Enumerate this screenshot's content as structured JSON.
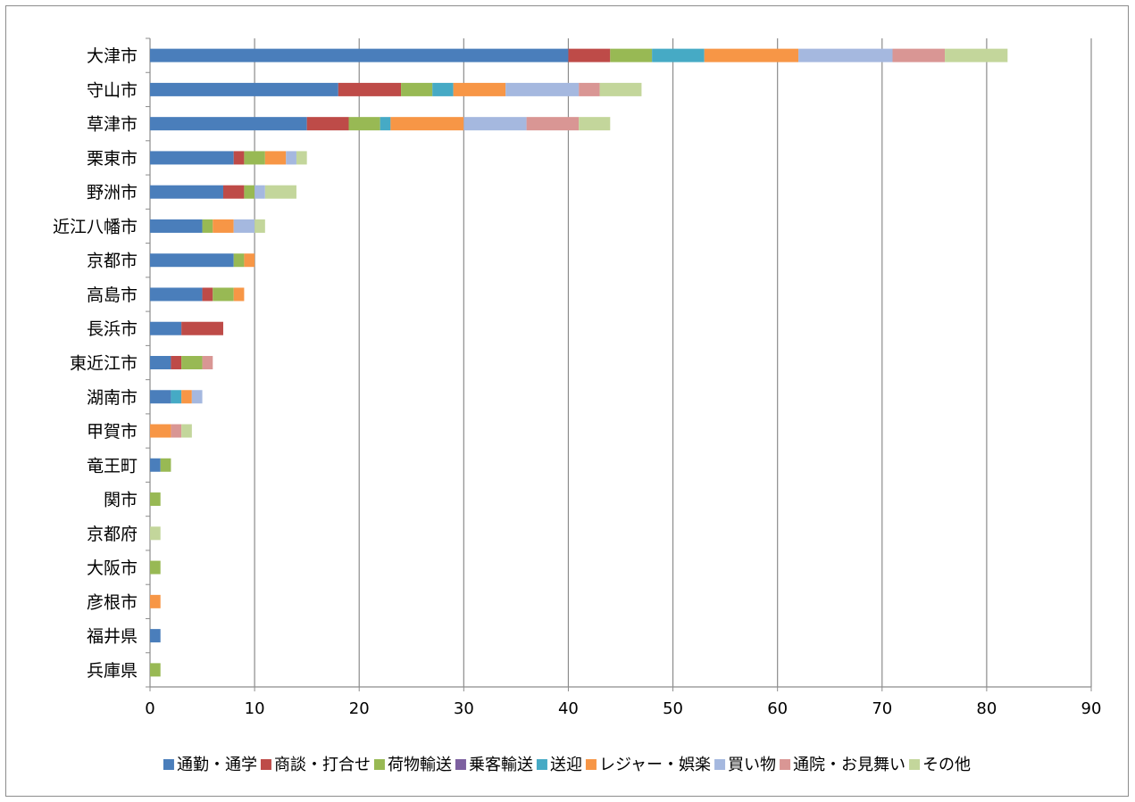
{
  "chart_data": {
    "type": "bar",
    "orientation": "horizontal",
    "stacked": true,
    "categories": [
      "大津市",
      "守山市",
      "草津市",
      "栗東市",
      "野洲市",
      "近江八幡市",
      "京都市",
      "高島市",
      "長浜市",
      "東近江市",
      "湖南市",
      "甲賀市",
      "竜王町",
      "関市",
      "京都府",
      "大阪市",
      "彦根市",
      "福井県",
      "兵庫県"
    ],
    "series": [
      {
        "name": "通勤・通学",
        "color": "#4a7ebb",
        "values": [
          40,
          18,
          15,
          8,
          7,
          5,
          8,
          5,
          3,
          2,
          2,
          0,
          1,
          0,
          0,
          0,
          0,
          1,
          0
        ]
      },
      {
        "name": "商談・打合せ",
        "color": "#be4b48",
        "values": [
          4,
          6,
          4,
          1,
          2,
          0,
          0,
          1,
          4,
          1,
          0,
          0,
          0,
          0,
          0,
          0,
          0,
          0,
          0
        ]
      },
      {
        "name": "荷物輸送",
        "color": "#98b954",
        "values": [
          4,
          3,
          3,
          2,
          1,
          1,
          1,
          2,
          0,
          2,
          0,
          0,
          1,
          1,
          0,
          1,
          0,
          0,
          1
        ]
      },
      {
        "name": "乗客輸送",
        "color": "#7d60a0",
        "values": [
          0,
          0,
          0,
          0,
          0,
          0,
          0,
          0,
          0,
          0,
          0,
          0,
          0,
          0,
          0,
          0,
          0,
          0,
          0
        ]
      },
      {
        "name": "送迎",
        "color": "#46aac5",
        "values": [
          5,
          2,
          1,
          0,
          0,
          0,
          0,
          0,
          0,
          0,
          1,
          0,
          0,
          0,
          0,
          0,
          0,
          0,
          0
        ]
      },
      {
        "name": "レジャー・娯楽",
        "color": "#f79646",
        "values": [
          9,
          5,
          7,
          2,
          0,
          2,
          1,
          1,
          0,
          0,
          1,
          2,
          0,
          0,
          0,
          0,
          1,
          0,
          0
        ]
      },
      {
        "name": "買い物",
        "color": "#a5b8df",
        "values": [
          9,
          7,
          6,
          1,
          1,
          2,
          0,
          0,
          0,
          0,
          1,
          0,
          0,
          0,
          0,
          0,
          0,
          0,
          0
        ]
      },
      {
        "name": "通院・お見舞い",
        "color": "#d99694",
        "values": [
          5,
          2,
          5,
          0,
          0,
          0,
          0,
          0,
          0,
          1,
          0,
          1,
          0,
          0,
          0,
          0,
          0,
          0,
          0
        ]
      },
      {
        "name": "その他",
        "color": "#c3d69b",
        "values": [
          6,
          4,
          3,
          1,
          3,
          1,
          0,
          0,
          0,
          0,
          0,
          1,
          0,
          0,
          1,
          0,
          0,
          0,
          0
        ]
      }
    ],
    "xlim": [
      0,
      90
    ],
    "xticks": [
      "0",
      "10",
      "20",
      "30",
      "40",
      "50",
      "60",
      "70",
      "80",
      "90"
    ],
    "grid": "vertical",
    "legend": "bottom"
  }
}
